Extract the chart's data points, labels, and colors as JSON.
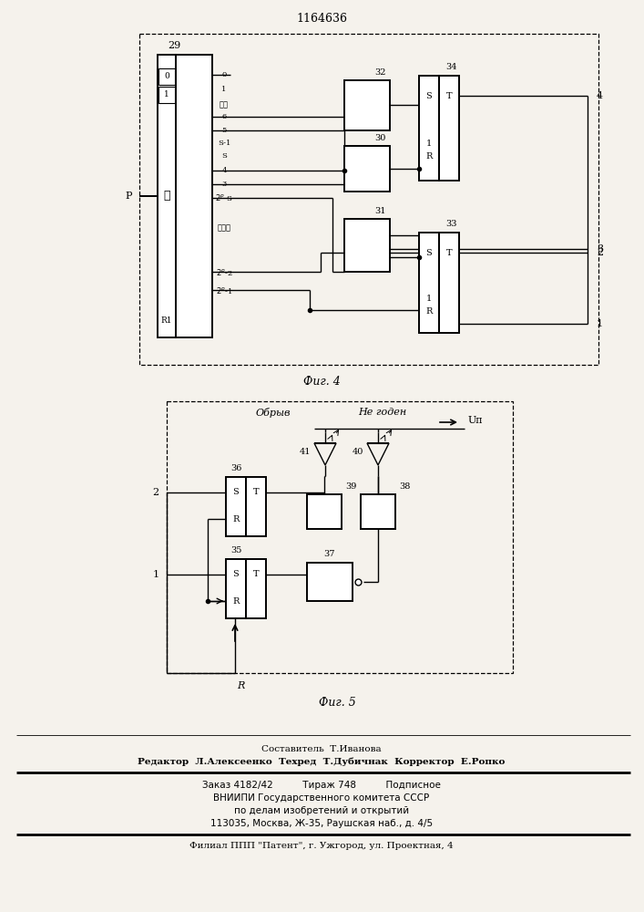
{
  "title": "1164636",
  "fig4_caption": "Фиг. 4",
  "fig5_caption": "Фиг. 5",
  "footer_line0": "Составитель  Т.Иванова",
  "footer_line1": "Редактор  Л.Алексеенко  Техред  Т.Дубичнак  Корректор  Е.Ропко",
  "footer_line2": "Заказ 4182/42          Тираж 748          Подписное",
  "footer_line3": "ВНИИПИ Государственного комитета СССР",
  "footer_line4": "по делам изобретений и открытий",
  "footer_line5": "113035, Москва, Ж-35, Раушская наб., д. 4/5",
  "footer_line6": "Филиал ППП \"Патент\", г. Ужгород, ул. Проектная, 4",
  "bg_color": "#f5f2ec"
}
